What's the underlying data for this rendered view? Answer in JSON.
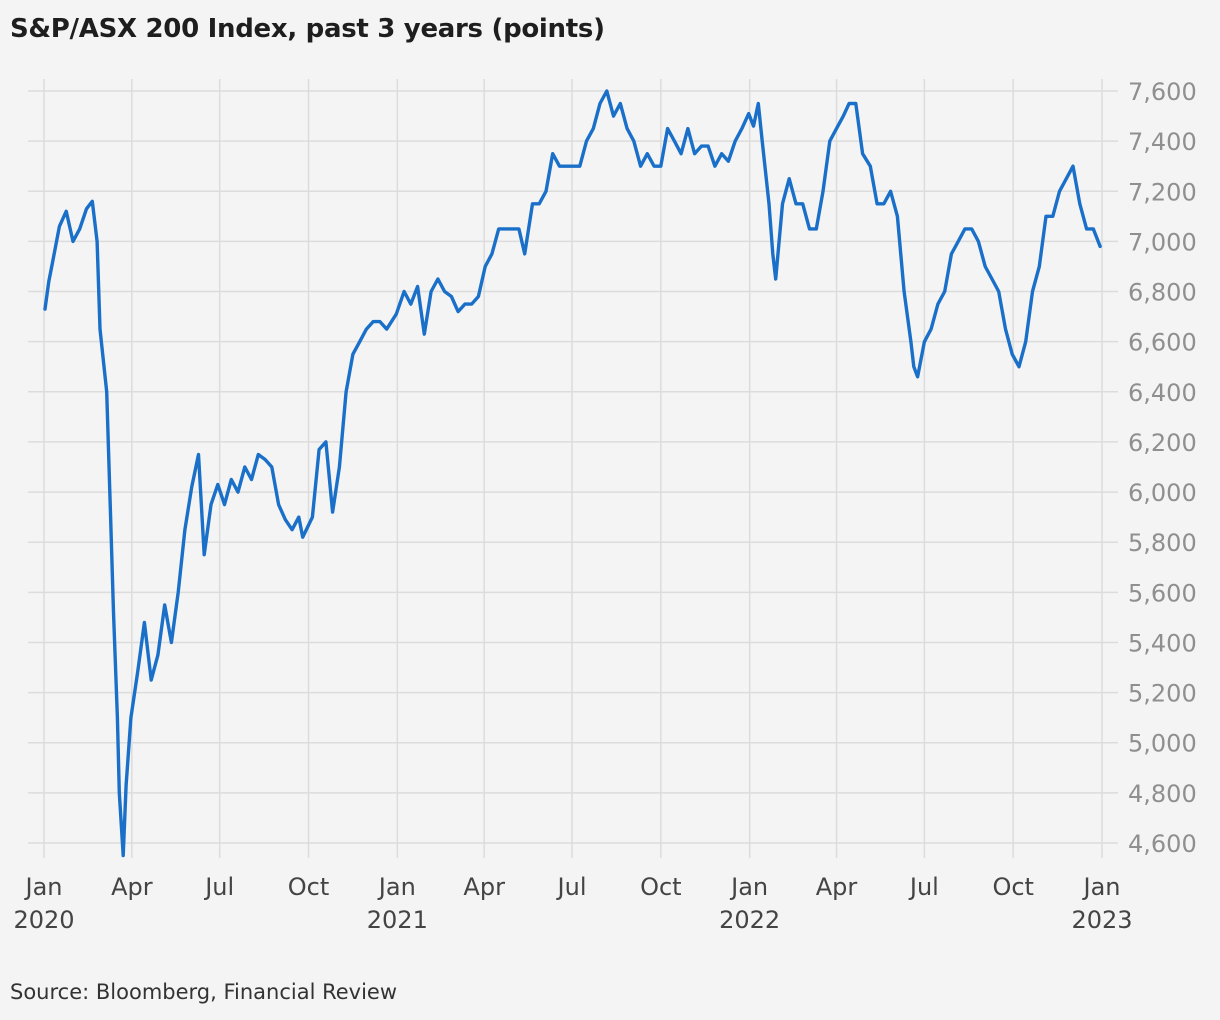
{
  "title": "S&P/ASX 200 Index, past 3 years (points)",
  "source": "Source: Bloomberg, Financial Review",
  "colors": {
    "line": "#1a6fc9",
    "grid": "#dcdcdc",
    "background": "#f4f4f4"
  },
  "chart_data": {
    "type": "line",
    "title": "S&P/ASX 200 Index, past 3 years (points)",
    "xlabel": "",
    "ylabel": "",
    "ylim": [
      4560,
      7630
    ],
    "xlim": [
      "2020-01-01",
      "2023-01-05"
    ],
    "grid": true,
    "y_ticks": [
      4600,
      4800,
      5000,
      5200,
      5400,
      5600,
      5800,
      6000,
      6200,
      6400,
      6600,
      6800,
      7000,
      7200,
      7400,
      7600
    ],
    "y_tick_labels": [
      "4,600",
      "4,800",
      "5,000",
      "5,200",
      "5,400",
      "5,600",
      "5,800",
      "6,000",
      "6,200",
      "6,400",
      "6,600",
      "6,800",
      "7,000",
      "7,200",
      "7,400",
      "7,600"
    ],
    "x_ticks": [
      {
        "date": "2020-01-01",
        "month": "Jan",
        "year": "2020"
      },
      {
        "date": "2020-04-01",
        "month": "Apr",
        "year": ""
      },
      {
        "date": "2020-07-01",
        "month": "Jul",
        "year": ""
      },
      {
        "date": "2020-10-01",
        "month": "Oct",
        "year": ""
      },
      {
        "date": "2021-01-01",
        "month": "Jan",
        "year": "2021"
      },
      {
        "date": "2021-04-01",
        "month": "Apr",
        "year": ""
      },
      {
        "date": "2021-07-01",
        "month": "Jul",
        "year": ""
      },
      {
        "date": "2021-10-01",
        "month": "Oct",
        "year": ""
      },
      {
        "date": "2022-01-01",
        "month": "Jan",
        "year": "2022"
      },
      {
        "date": "2022-04-01",
        "month": "Apr",
        "year": ""
      },
      {
        "date": "2022-07-01",
        "month": "Jul",
        "year": ""
      },
      {
        "date": "2022-10-01",
        "month": "Oct",
        "year": ""
      },
      {
        "date": "2023-01-01",
        "month": "Jan",
        "year": "2023"
      }
    ],
    "series": [
      {
        "x": [
          "2020-01-02",
          "2020-01-06",
          "2020-01-10",
          "2020-01-17",
          "2020-01-24",
          "2020-01-31",
          "2020-02-07",
          "2020-02-14",
          "2020-02-20",
          "2020-02-25",
          "2020-02-28",
          "2020-03-06",
          "2020-03-10",
          "2020-03-13",
          "2020-03-17",
          "2020-03-19",
          "2020-03-23",
          "2020-03-26",
          "2020-03-31",
          "2020-04-07",
          "2020-04-14",
          "2020-04-21",
          "2020-04-28",
          "2020-05-05",
          "2020-05-12",
          "2020-05-19",
          "2020-05-26",
          "2020-06-02",
          "2020-06-09",
          "2020-06-15",
          "2020-06-22",
          "2020-06-29",
          "2020-07-06",
          "2020-07-13",
          "2020-07-20",
          "2020-07-27",
          "2020-08-03",
          "2020-08-10",
          "2020-08-17",
          "2020-08-24",
          "2020-08-31",
          "2020-09-07",
          "2020-09-14",
          "2020-09-21",
          "2020-09-25",
          "2020-10-05",
          "2020-10-12",
          "2020-10-19",
          "2020-10-26",
          "2020-11-02",
          "2020-11-09",
          "2020-11-16",
          "2020-11-23",
          "2020-11-30",
          "2020-12-07",
          "2020-12-14",
          "2020-12-21",
          "2020-12-31",
          "2021-01-08",
          "2021-01-15",
          "2021-01-22",
          "2021-01-29",
          "2021-02-05",
          "2021-02-12",
          "2021-02-19",
          "2021-02-26",
          "2021-03-05",
          "2021-03-12",
          "2021-03-19",
          "2021-03-26",
          "2021-04-02",
          "2021-04-09",
          "2021-04-16",
          "2021-04-23",
          "2021-04-30",
          "2021-05-07",
          "2021-05-13",
          "2021-05-21",
          "2021-05-28",
          "2021-06-04",
          "2021-06-11",
          "2021-06-18",
          "2021-06-25",
          "2021-07-02",
          "2021-07-09",
          "2021-07-16",
          "2021-07-23",
          "2021-07-30",
          "2021-08-06",
          "2021-08-13",
          "2021-08-20",
          "2021-08-27",
          "2021-09-03",
          "2021-09-10",
          "2021-09-17",
          "2021-09-24",
          "2021-10-01",
          "2021-10-08",
          "2021-10-15",
          "2021-10-22",
          "2021-10-29",
          "2021-11-05",
          "2021-11-12",
          "2021-11-19",
          "2021-11-26",
          "2021-12-03",
          "2021-12-10",
          "2021-12-17",
          "2021-12-24",
          "2021-12-31",
          "2022-01-05",
          "2022-01-10",
          "2022-01-14",
          "2022-01-21",
          "2022-01-25",
          "2022-01-28",
          "2022-02-04",
          "2022-02-11",
          "2022-02-18",
          "2022-02-25",
          "2022-03-04",
          "2022-03-11",
          "2022-03-18",
          "2022-03-25",
          "2022-04-01",
          "2022-04-08",
          "2022-04-14",
          "2022-04-21",
          "2022-04-28",
          "2022-05-06",
          "2022-05-13",
          "2022-05-20",
          "2022-05-27",
          "2022-06-03",
          "2022-06-10",
          "2022-06-17",
          "2022-06-20",
          "2022-06-24",
          "2022-07-01",
          "2022-07-08",
          "2022-07-15",
          "2022-07-22",
          "2022-07-29",
          "2022-08-05",
          "2022-08-12",
          "2022-08-19",
          "2022-08-26",
          "2022-09-02",
          "2022-09-09",
          "2022-09-16",
          "2022-09-23",
          "2022-09-30",
          "2022-10-07",
          "2022-10-14",
          "2022-10-21",
          "2022-10-28",
          "2022-11-04",
          "2022-11-11",
          "2022-11-18",
          "2022-11-25",
          "2022-12-02",
          "2022-12-09",
          "2022-12-16",
          "2022-12-23",
          "2022-12-30"
        ],
        "values": [
          6730,
          6840,
          6920,
          7060,
          7120,
          7000,
          7050,
          7130,
          7160,
          7000,
          6650,
          6400,
          5900,
          5520,
          5100,
          4800,
          4550,
          4830,
          5100,
          5280,
          5480,
          5250,
          5350,
          5550,
          5400,
          5600,
          5850,
          6020,
          6150,
          5750,
          5950,
          6030,
          5950,
          6050,
          6000,
          6100,
          6050,
          6150,
          6130,
          6100,
          5950,
          5890,
          5850,
          5900,
          5820,
          5900,
          6170,
          6200,
          5920,
          6100,
          6400,
          6550,
          6600,
          6650,
          6680,
          6680,
          6650,
          6710,
          6800,
          6750,
          6820,
          6630,
          6800,
          6850,
          6800,
          6780,
          6720,
          6750,
          6750,
          6780,
          6900,
          6950,
          7050,
          7050,
          7050,
          7050,
          6950,
          7150,
          7150,
          7200,
          7350,
          7300,
          7300,
          7300,
          7300,
          7400,
          7450,
          7550,
          7600,
          7500,
          7550,
          7450,
          7400,
          7300,
          7350,
          7300,
          7300,
          7450,
          7400,
          7350,
          7450,
          7350,
          7380,
          7380,
          7300,
          7350,
          7320,
          7400,
          7450,
          7510,
          7460,
          7550,
          7400,
          7150,
          6950,
          6850,
          7150,
          7250,
          7150,
          7150,
          7050,
          7050,
          7200,
          7400,
          7450,
          7500,
          7550,
          7550,
          7350,
          7300,
          7150,
          7150,
          7200,
          7100,
          6800,
          6600,
          6500,
          6460,
          6600,
          6650,
          6750,
          6800,
          6950,
          7000,
          7050,
          7050,
          7000,
          6900,
          6850,
          6800,
          6650,
          6550,
          6500,
          6600,
          6800,
          6900,
          7100,
          7100,
          7200,
          7250,
          7300,
          7150,
          7050,
          7050,
          6980
        ]
      }
    ]
  }
}
